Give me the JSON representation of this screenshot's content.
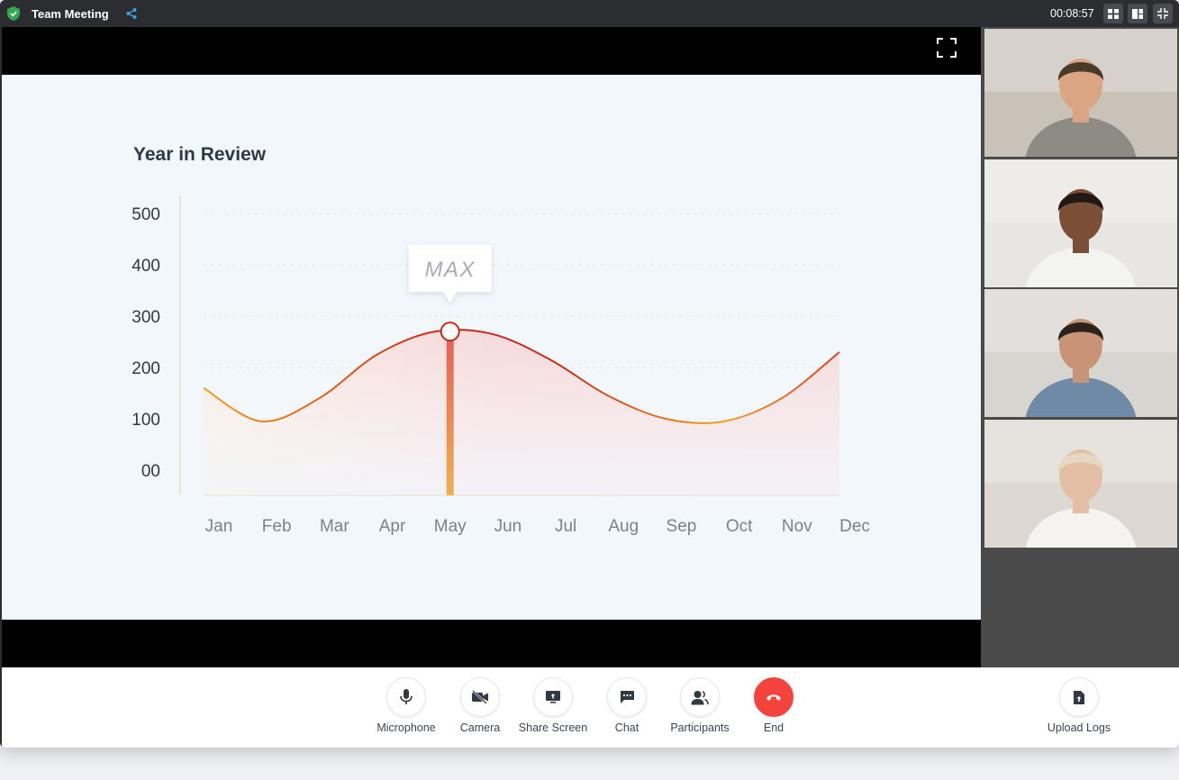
{
  "window": {
    "title": "Team Meeting",
    "timer": "00:08:57"
  },
  "slide": {
    "title": "Year in Review",
    "tooltip": "MAX"
  },
  "chart_data": {
    "type": "area",
    "title": "Year in Review",
    "categories": [
      "Jan",
      "Feb",
      "Mar",
      "Apr",
      "May",
      "Jun",
      "Jul",
      "Aug",
      "Sep",
      "Oct",
      "Nov",
      "Dec"
    ],
    "y_ticks": [
      "500",
      "400",
      "300",
      "200",
      "100",
      "00"
    ],
    "ylim": [
      0,
      500
    ],
    "series": [
      {
        "values": [
          160,
          95,
          140,
          225,
          270,
          265,
          215,
          145,
          100,
          95,
          140,
          230
        ]
      }
    ],
    "highlight": {
      "category": "May",
      "label": "MAX"
    },
    "grid": true,
    "colors": {
      "line_start": "#f0a020",
      "line_peak": "#c62a1a",
      "highlight_bar": "#e87b5f",
      "marker_fill": "#ffffff"
    }
  },
  "participants": [
    {
      "name": "participant-1",
      "bg": "#c9c2b8",
      "shirt": "#8d8b84",
      "skin": "#d9a582",
      "hair": "#4a3a2c"
    },
    {
      "name": "participant-2",
      "bg": "#e8e6e2",
      "shirt": "#f3f3f1",
      "skin": "#7a4f36",
      "hair": "#221814"
    },
    {
      "name": "participant-3",
      "bg": "#d8d5d1",
      "shirt": "#6f8aa6",
      "skin": "#c89376",
      "hair": "#2c221c"
    },
    {
      "name": "participant-4",
      "bg": "#ded8d2",
      "shirt": "#f6f4f1",
      "skin": "#e4bfa6",
      "hair": "#e6d7c2"
    }
  ],
  "controls": {
    "microphone": "Microphone",
    "camera": "Camera",
    "share_screen": "Share Screen",
    "chat": "Chat",
    "participants": "Participants",
    "end": "End",
    "upload_logs": "Upload Logs"
  },
  "colors": {
    "accent_end": "#f4433c",
    "share_icon": "#3aa0e8",
    "shield": "#2fa84f"
  }
}
